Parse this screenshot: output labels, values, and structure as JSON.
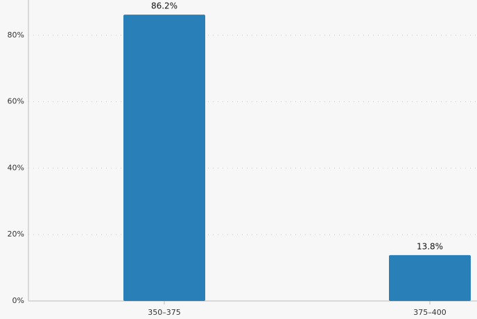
{
  "chart_data": {
    "type": "bar",
    "categories": [
      "350–375",
      "375–400"
    ],
    "values": [
      86.2,
      13.8
    ],
    "value_labels": [
      "86.2%",
      "13.8%"
    ],
    "color": "#2980b9",
    "ylim": [
      0,
      90.6
    ],
    "yticks": [
      {
        "value": 0,
        "label": "0%"
      },
      {
        "value": 20,
        "label": "20%"
      },
      {
        "value": 40,
        "label": "40%"
      },
      {
        "value": 60,
        "label": "60%"
      },
      {
        "value": 80,
        "label": "80%"
      }
    ],
    "grid": true
  }
}
